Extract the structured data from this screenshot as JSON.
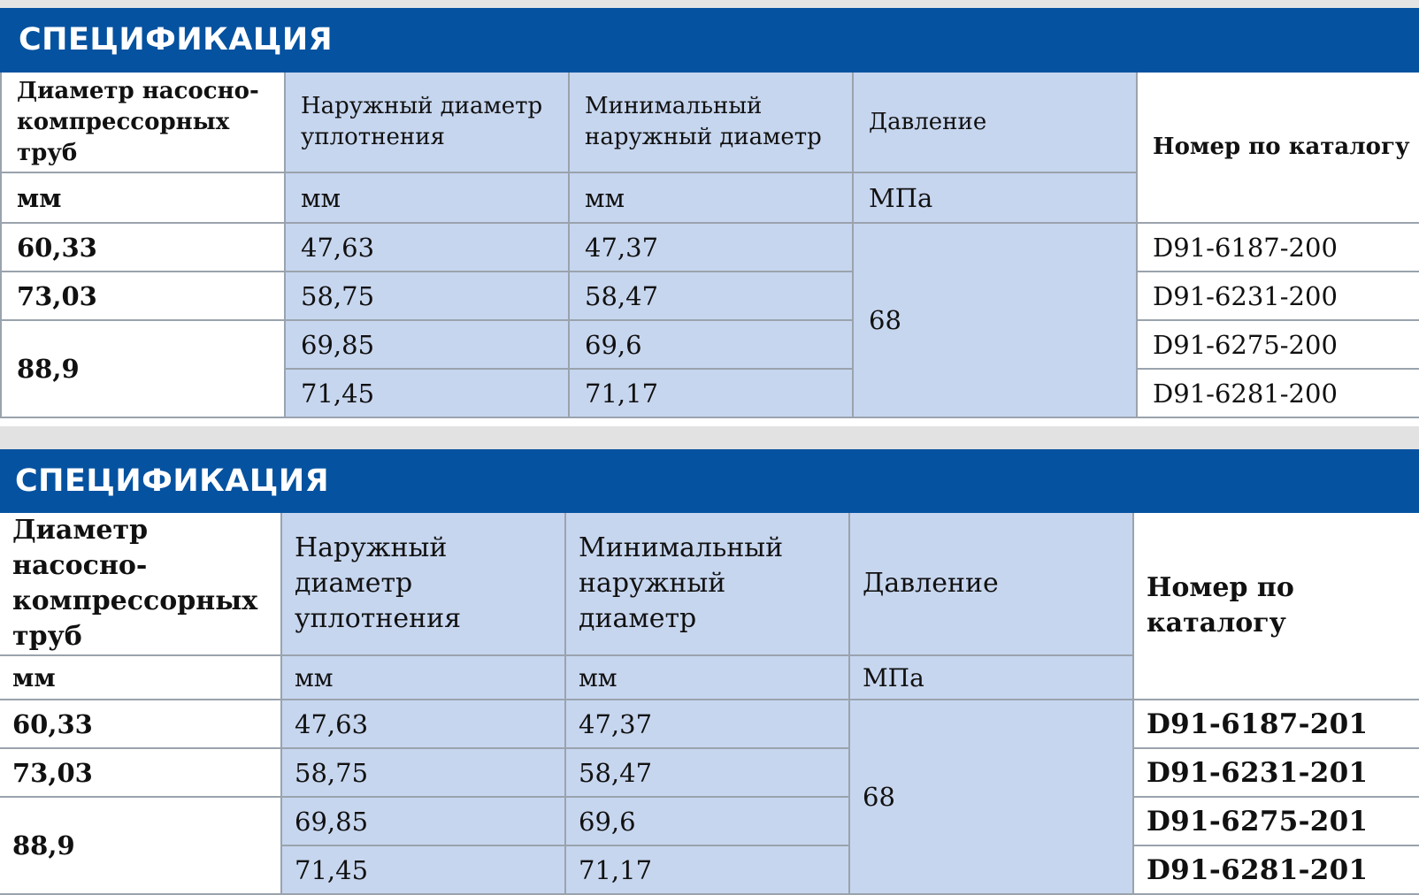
{
  "sections": [
    {
      "title": "СПЕЦИФИКАЦИЯ",
      "headers": {
        "col1": "Диаметр насосно-компрессорных труб",
        "col2": "Наружный диаметр уплотнения",
        "col3": "Минимальный наружный диаметр",
        "col4": "Давление",
        "col5": "Номер по каталогу"
      },
      "units": {
        "col1": "мм",
        "col2": "мм",
        "col3": "мм",
        "col4": "МПа"
      },
      "pressure": "68",
      "rows": [
        {
          "tubing": "60,33",
          "seal_od": "47,63",
          "min_od": "47,37",
          "catalog": "D91-6187-200"
        },
        {
          "tubing": "73,03",
          "seal_od": "58,75",
          "min_od": "58,47",
          "catalog": "D91-6231-200"
        },
        {
          "tubing": "88,9",
          "seal_od": "69,85",
          "min_od": "69,6",
          "catalog": "D91-6275-200"
        },
        {
          "tubing": "88,9",
          "seal_od": "71,45",
          "min_od": "71,17",
          "catalog": "D91-6281-200"
        }
      ]
    },
    {
      "title": "СПЕЦИФИКАЦИЯ",
      "headers": {
        "col1": "Диаметр насосно-компрессорных труб",
        "col2": "Наружный диаметр уплотнения",
        "col3": "Минимальный наружный диаметр",
        "col4": "Давление",
        "col5": "Номер по каталогу"
      },
      "units": {
        "col1": "мм",
        "col2": "мм",
        "col3": "мм",
        "col4": "МПа"
      },
      "pressure": "68",
      "rows": [
        {
          "tubing": "60,33",
          "seal_od": "47,63",
          "min_od": "47,37",
          "catalog": "D91-6187-201"
        },
        {
          "tubing": "73,03",
          "seal_od": "58,75",
          "min_od": "58,47",
          "catalog": "D91-6231-201"
        },
        {
          "tubing": "88,9",
          "seal_od": "69,85",
          "min_od": "69,6",
          "catalog": "D91-6275-201"
        },
        {
          "tubing": "88,9",
          "seal_od": "71,45",
          "min_od": "71,17",
          "catalog": "D91-6281-201"
        }
      ]
    }
  ],
  "colors": {
    "band": "#0552a0",
    "highlight_column": "#c7d6ef",
    "grid": "#9aa3ad"
  }
}
